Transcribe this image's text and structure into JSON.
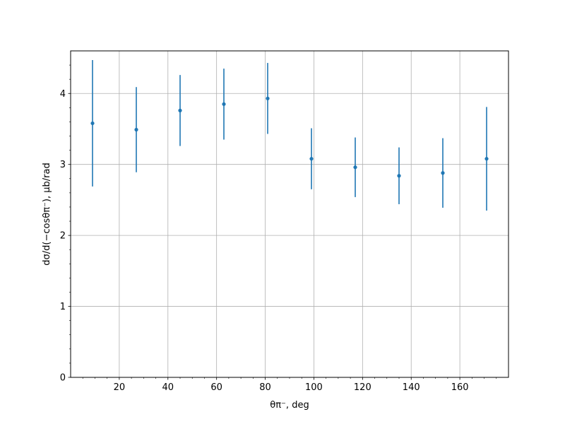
{
  "chart_data": {
    "type": "scatter",
    "error_bars": true,
    "grid": true,
    "xlabel": "θπ⁻, deg",
    "ylabel": "dσ/d(−cosθπ⁻), μb/rad",
    "xlim": [
      0,
      180
    ],
    "ylim": [
      0,
      4.6
    ],
    "x_major_ticks": [
      20,
      40,
      60,
      80,
      100,
      120,
      140,
      160
    ],
    "x_minor_step": 5,
    "y_major_ticks": [
      0,
      1,
      2,
      3,
      4
    ],
    "y_minor_step": 0.2,
    "color": "#1f77b4",
    "series": [
      {
        "x": [
          9,
          27,
          45,
          63,
          81,
          99,
          117,
          135,
          153,
          171
        ],
        "y": [
          3.58,
          3.49,
          3.76,
          3.85,
          3.93,
          3.08,
          2.96,
          2.84,
          2.88,
          3.08
        ],
        "yerr": [
          0.89,
          0.6,
          0.5,
          0.5,
          0.5,
          0.43,
          0.42,
          0.4,
          0.49,
          0.73
        ]
      }
    ]
  }
}
